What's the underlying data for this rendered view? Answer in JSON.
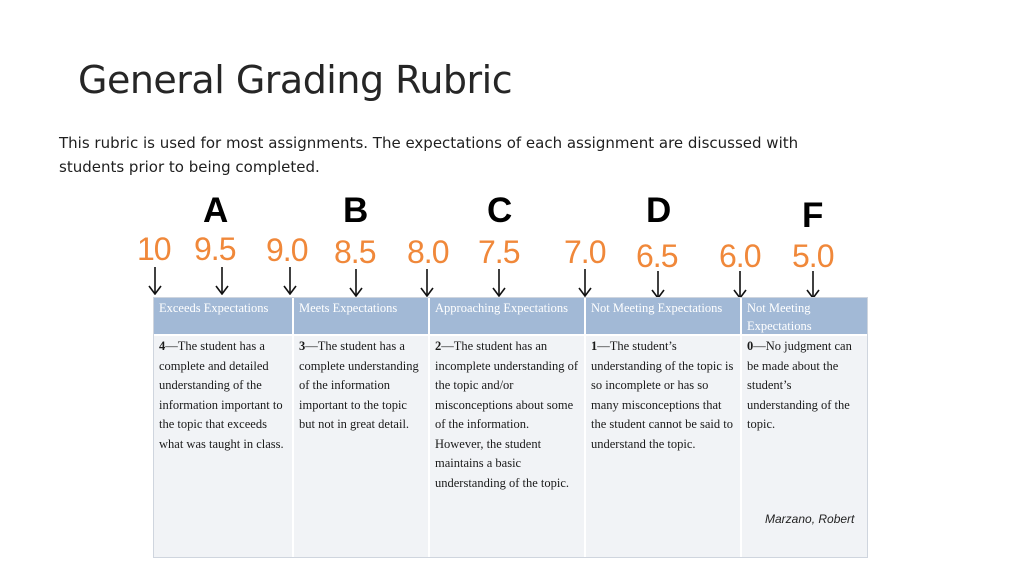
{
  "slide": {
    "title": "General Grading Rubric",
    "description": "This rubric is used for most assignments. The expectations of each assignment are discussed with students prior to being completed."
  },
  "scale": {
    "grades": [
      "A",
      "B",
      "C",
      "D",
      "F"
    ],
    "scores": [
      "10",
      "9.5",
      "9.0",
      "8.5",
      "8.0",
      "7.5",
      "7.0",
      "6.5",
      "6.0",
      "5.0"
    ],
    "score_color": "#f0883a",
    "arrow_icon": "down-arrow-icon"
  },
  "rubric": {
    "header_color": "#a2b9d6",
    "columns": [
      {
        "heading": "Exceeds Expectations",
        "level": "4",
        "text": "—The student has a complete and detailed understanding of the information important to the topic that exceeds what was taught in class."
      },
      {
        "heading": "Meets Expectations",
        "level": "3",
        "text": "—The student has a complete understanding of the information important to the topic but not in great detail."
      },
      {
        "heading": "Approaching Expectations",
        "level": "2",
        "text": "—The student has an incomplete understanding of the topic and/or misconceptions about some of the information. However, the student maintains a basic understanding of the topic."
      },
      {
        "heading": "Not Meeting Expectations",
        "level": "1",
        "text": "—The student’s understanding of the topic is so incomplete or has so many misconceptions that the student cannot be said to understand the topic."
      },
      {
        "heading": "Not Meeting Expectations",
        "level": "0",
        "text": "—No judgment can be made about the student’s understanding of the topic."
      }
    ],
    "credit": "Marzano, Robert"
  }
}
